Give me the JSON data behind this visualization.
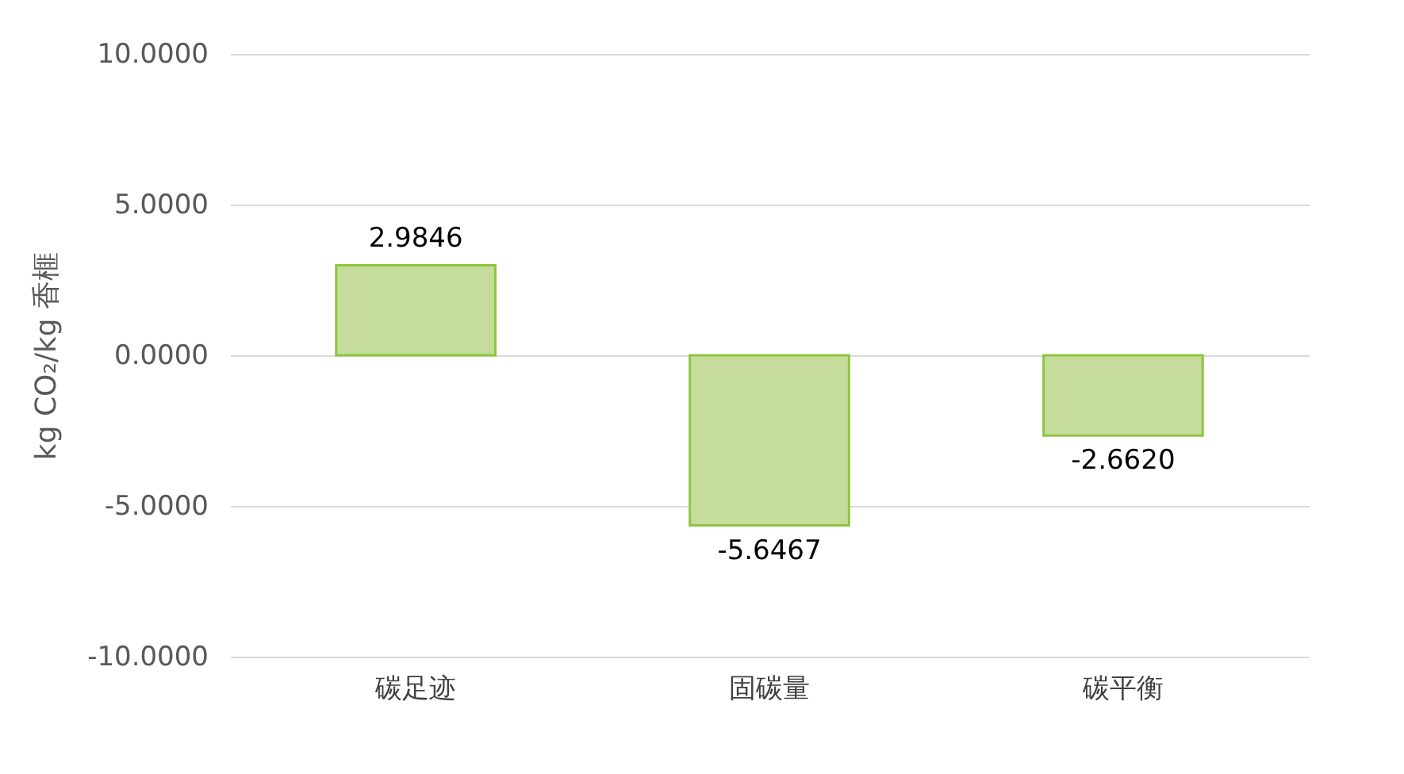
{
  "chart_data": {
    "type": "bar",
    "ylabel": "kg CO₂/kg 香榧",
    "categories": [
      "碳足迹",
      "固碳量",
      "碳平衡"
    ],
    "values": [
      2.9846,
      -5.6467,
      -2.662
    ],
    "value_labels": [
      "2.9846",
      "-5.6467",
      "-2.6620"
    ],
    "color": "#c5dc9c",
    "ylim": [
      -10,
      10
    ],
    "yticks": [
      {
        "value": -10,
        "label": "-10.0000"
      },
      {
        "value": -5,
        "label": "-5.0000"
      },
      {
        "value": 0,
        "label": "0.0000"
      },
      {
        "value": 5,
        "label": "5.0000"
      },
      {
        "value": 10,
        "label": "10.0000"
      }
    ],
    "grid": "y"
  }
}
